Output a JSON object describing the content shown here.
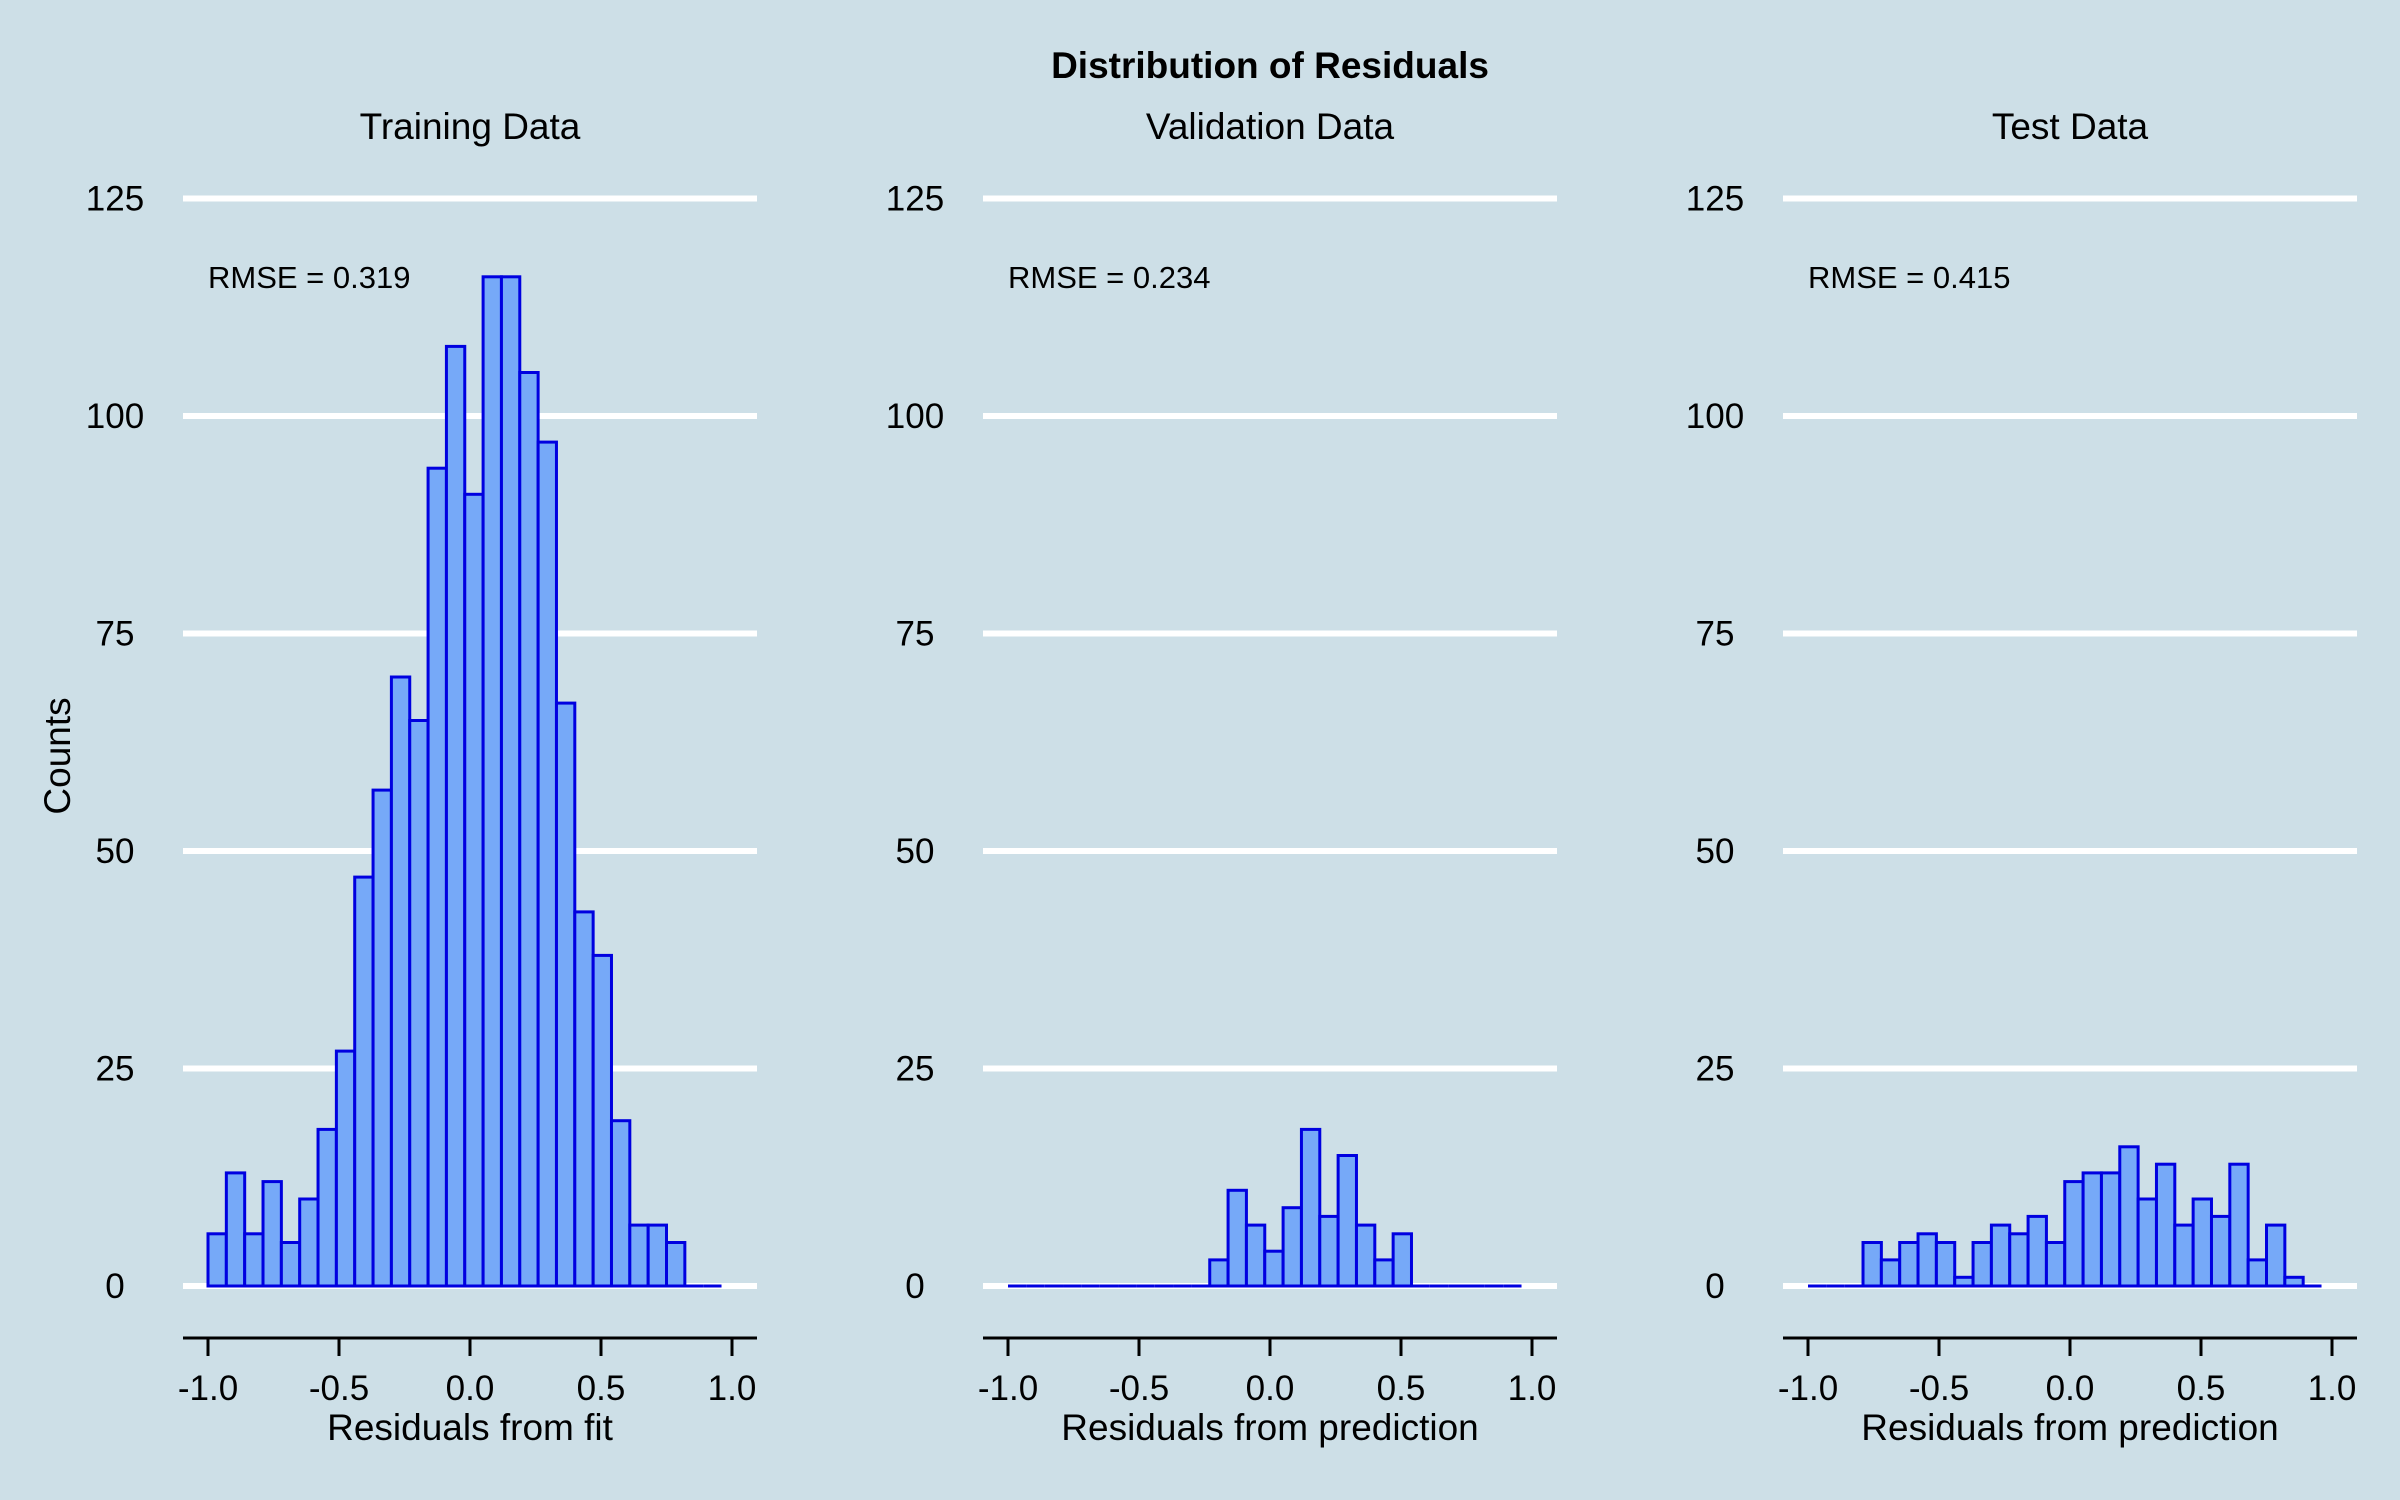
{
  "chart_data": {
    "type": "bar",
    "title": "Distribution of Residuals",
    "ylabel": "Counts",
    "ylim": [
      0,
      125
    ],
    "xlim": [
      -1.0,
      1.0
    ],
    "yticks": [
      0,
      25,
      50,
      75,
      100,
      125
    ],
    "xticks": [
      -1.0,
      -0.5,
      0.0,
      0.5,
      1.0
    ],
    "xtick_labels": [
      "-1.0",
      "-0.5",
      "0.0",
      "0.5",
      "1.0"
    ],
    "grid": "horizontal",
    "colors": {
      "background": "#cddfe7",
      "bar_fill": "#76a9f8",
      "bar_stroke": "#0000e0",
      "gridline": "#ffffff",
      "axis": "#000000"
    },
    "bin_edges": [
      -1.0,
      -0.93,
      -0.86,
      -0.79,
      -0.72,
      -0.65,
      -0.58,
      -0.51,
      -0.44,
      -0.37,
      -0.3,
      -0.23,
      -0.16,
      -0.09,
      -0.02,
      0.05,
      0.12,
      0.19,
      0.26,
      0.33,
      0.4,
      0.47,
      0.54,
      0.61,
      0.68,
      0.75,
      0.82,
      0.89,
      0.96
    ],
    "panels": [
      {
        "title": "Training Data",
        "xlabel": "Residuals from fit",
        "annotation": "RMSE = 0.319",
        "values": [
          6,
          13,
          6,
          12,
          5,
          10,
          18,
          27,
          47,
          57,
          70,
          65,
          94,
          108,
          91,
          116,
          116,
          105,
          97,
          67,
          43,
          38,
          19,
          7,
          7,
          5,
          0,
          0
        ]
      },
      {
        "title": "Validation Data",
        "xlabel": "Residuals from prediction",
        "annotation": "RMSE = 0.234",
        "values": [
          0,
          0,
          0,
          0,
          0,
          0,
          0,
          0,
          0,
          0,
          0,
          3,
          11,
          7,
          4,
          9,
          18,
          8,
          15,
          7,
          3,
          6,
          0,
          0,
          0,
          0,
          0,
          0
        ]
      },
      {
        "title": "Test Data",
        "xlabel": "Residuals from prediction",
        "annotation": "RMSE = 0.415",
        "values": [
          0,
          0,
          0,
          5,
          3,
          5,
          6,
          5,
          1,
          5,
          7,
          6,
          8,
          5,
          12,
          13,
          13,
          16,
          10,
          14,
          7,
          10,
          8,
          14,
          3,
          7,
          1,
          0
        ]
      }
    ]
  }
}
